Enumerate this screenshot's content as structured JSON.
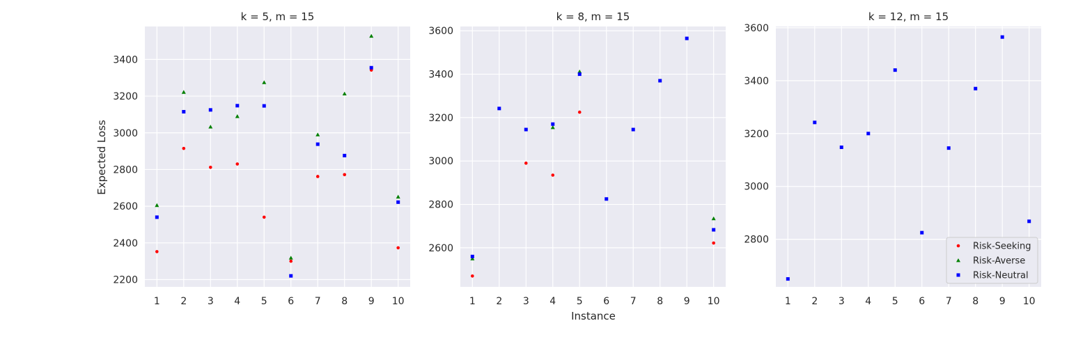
{
  "colors": {
    "panel_background": "#eaeaf2",
    "grid": "#ffffff",
    "text": "#262626",
    "risk_seeking": "#ff0000",
    "risk_averse": "#008000",
    "risk_neutral": "#0000ff"
  },
  "figure": {
    "xlabel": "Instance",
    "ylabel": "Expected Loss"
  },
  "chart_data": [
    {
      "type": "scatter",
      "title": "k = 5, m = 15",
      "x": [
        1,
        2,
        3,
        4,
        5,
        6,
        7,
        8,
        9,
        10
      ],
      "xlim": [
        0.55,
        10.45
      ],
      "ylim": [
        2160,
        3580
      ],
      "yticks": [
        2200,
        2400,
        2600,
        2800,
        3000,
        3200,
        3400
      ],
      "grid": true,
      "legend": false,
      "series": [
        {
          "name": "Risk-Seeking",
          "marker": "circle",
          "color": "#ff0000",
          "values": [
            2352,
            2915,
            2812,
            2830,
            2540,
            2300,
            2762,
            2772,
            3342,
            2373
          ]
        },
        {
          "name": "Risk-Averse",
          "marker": "triangle",
          "color": "#008000",
          "values": [
            2605,
            3222,
            3033,
            3090,
            3275,
            2318,
            2990,
            3213,
            3528,
            2651
          ]
        },
        {
          "name": "Risk-Neutral",
          "marker": "square",
          "color": "#0000ff",
          "values": [
            2540,
            3115,
            3125,
            3148,
            3147,
            2220,
            2938,
            2876,
            3355,
            2622
          ]
        }
      ]
    },
    {
      "type": "scatter",
      "title": "k = 8, m = 15",
      "x": [
        1,
        2,
        3,
        4,
        5,
        6,
        7,
        8,
        9,
        10
      ],
      "xlim": [
        0.55,
        10.45
      ],
      "ylim": [
        2420,
        3620
      ],
      "yticks": [
        2600,
        2800,
        3000,
        3200,
        3400,
        3600
      ],
      "grid": true,
      "legend": false,
      "series": [
        {
          "name": "Risk-Seeking",
          "marker": "circle",
          "color": "#ff0000",
          "values": [
            2470,
            null,
            2990,
            2935,
            3225,
            null,
            null,
            null,
            null,
            2622
          ]
        },
        {
          "name": "Risk-Averse",
          "marker": "triangle",
          "color": "#008000",
          "values": [
            2550,
            null,
            null,
            3155,
            3412,
            null,
            null,
            null,
            null,
            2735
          ]
        },
        {
          "name": "Risk-Neutral",
          "marker": "square",
          "color": "#0000ff",
          "values": [
            2560,
            3242,
            3145,
            3170,
            3400,
            2825,
            3145,
            3370,
            3565,
            2683
          ]
        }
      ]
    },
    {
      "type": "scatter",
      "title": "k = 12, m = 15",
      "x": [
        1,
        2,
        3,
        4,
        5,
        6,
        7,
        8,
        9,
        10
      ],
      "xlim": [
        0.55,
        10.45
      ],
      "ylim": [
        2620,
        3605
      ],
      "yticks": [
        2800,
        3000,
        3200,
        3400,
        3600
      ],
      "grid": true,
      "legend": true,
      "legend_position": "lower-right",
      "legend_entries": [
        "Risk-Seeking",
        "Risk-Averse",
        "Risk-Neutral"
      ],
      "series": [
        {
          "name": "Risk-Seeking",
          "marker": "circle",
          "color": "#ff0000",
          "values": [
            null,
            null,
            null,
            null,
            null,
            null,
            null,
            null,
            null,
            null
          ]
        },
        {
          "name": "Risk-Averse",
          "marker": "triangle",
          "color": "#008000",
          "values": [
            null,
            null,
            null,
            null,
            null,
            null,
            null,
            null,
            null,
            null
          ]
        },
        {
          "name": "Risk-Neutral",
          "marker": "square",
          "color": "#0000ff",
          "values": [
            2650,
            3242,
            3148,
            3200,
            3440,
            2825,
            3145,
            3370,
            3565,
            2868
          ]
        }
      ]
    }
  ]
}
